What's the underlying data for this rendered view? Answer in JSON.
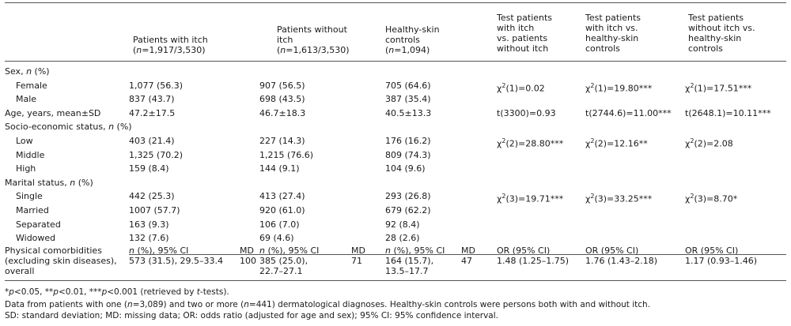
{
  "header": {
    "col_itch": "Patients with itch\n(n=1,917/3,530)",
    "col_noitch": "Patients without\nitch\n(n=1,613/3,530)",
    "col_healthy": "Healthy-skin\ncontrols\n(n=1,094)",
    "col_test1": "Test patients\nwith itch\nvs. patients\nwithout itch",
    "col_test2": "Test patients\nwith itch vs.\nhealthy-skin\ncontrols",
    "col_test3": "Test patients\nwithout itch vs.\nhealthy-skin\ncontrols"
  },
  "rows": [
    {
      "label": "Sex, n (%)",
      "indent": false,
      "cells": [
        "",
        "",
        "",
        "",
        "",
        ""
      ]
    },
    {
      "label": "Female",
      "indent": true,
      "cells": [
        "1,077 (56.3)",
        "907 (56.5)",
        "705 (64.6)",
        "χ2(1)=0.02",
        "χ2(1)=19.80***",
        "χ2(1)=17.51***"
      ]
    },
    {
      "label": "Male",
      "indent": true,
      "cells": [
        "837 (43.7)",
        "698 (43.5)",
        "387 (35.4)",
        "",
        "",
        ""
      ]
    },
    {
      "label": "Age, years, mean±SD",
      "indent": false,
      "cells": [
        "47.2±17.5",
        "46.7±18.3",
        "40.5±13.3",
        "t(3300)=0.93",
        "t(2744.6)=11.00***",
        "t(2648.1)=10.11***"
      ]
    },
    {
      "label": "Socio-economic status, n (%)",
      "indent": false,
      "cells": [
        "",
        "",
        "",
        "",
        "",
        ""
      ]
    },
    {
      "label": "Low",
      "indent": true,
      "cells": [
        "403 (21.4)",
        "227 (14.3)",
        "176 (16.2)",
        "χ2(2)=28.80***",
        "χ2(2)=12.16**",
        "χ2(2)=2.08"
      ]
    },
    {
      "label": "Middle",
      "indent": true,
      "cells": [
        "1,325 (70.2)",
        "1,215 (76.6)",
        "809 (74.3)",
        "",
        "",
        ""
      ]
    },
    {
      "label": "High",
      "indent": true,
      "cells": [
        "159 (8.4)",
        "144 (9.1)",
        "104 (9.6)",
        "",
        "",
        ""
      ]
    },
    {
      "label": "Marital status, n (%)",
      "indent": false,
      "cells": [
        "",
        "",
        "",
        "",
        "",
        ""
      ]
    },
    {
      "label": "Single",
      "indent": true,
      "cells": [
        "442 (25.3)",
        "413 (27.4)",
        "293 (26.8)",
        "χ2(3)=19.71***",
        "χ2(3)=33.25***",
        "χ2(3)=8.70*"
      ]
    },
    {
      "label": "Married",
      "indent": true,
      "cells": [
        "1007 (57.7)",
        "920 (61.0)",
        "679 (62.2)",
        "",
        "",
        ""
      ]
    },
    {
      "label": "Separated",
      "indent": true,
      "cells": [
        "163 (9.3)",
        "106 (7.0)",
        "92 (8.4)",
        "",
        "",
        ""
      ]
    },
    {
      "label": "Widowed",
      "indent": true,
      "cells": [
        "132 (7.6)",
        "69 (4.6)",
        "28 (2.6)",
        "",
        "",
        ""
      ]
    }
  ],
  "comorbidity": {
    "label_line1": "Physical comorbidities",
    "label_line2": "(excluding skin diseases),",
    "label_line3": "overall",
    "sub_itch": "n (%), 95% CI",
    "md": "MD",
    "sub_noitch": "n (%), 95% CI",
    "sub_healthy": "n (%), 95% CI",
    "sub_or1": "OR (95% CI)",
    "sub_or2": "OR (95% CI)",
    "sub_or3": "OR (95% CI)",
    "itch_val": "573 (31.5), 29.5–33.4",
    "itch_md": "100",
    "noitch_val1": "385 (25.0),",
    "noitch_val2": "22.7–27.1",
    "noitch_md": "71",
    "healthy_val1": "164 (15.7),",
    "healthy_val2": "13.5–17.7",
    "healthy_md": "47",
    "or1": "1.48 (1.25–1.75)",
    "or2": "1.76 (1.43–2.18)",
    "or3": "1.17 (0.93–1.46)"
  },
  "footnotes": {
    "sig": "*p<0.05, **p<0.01, ***p<0.001 (retrieved by t-tests).",
    "data": "Data from patients with one (n=3,089) and two or more (n=441) dermatological diagnoses. Healthy-skin controls were persons both with and without itch.",
    "abbr": "SD: standard deviation; MD: missing data; OR: odds ratio (adjusted for age and sex); 95% CI: 95% confidence interval."
  }
}
